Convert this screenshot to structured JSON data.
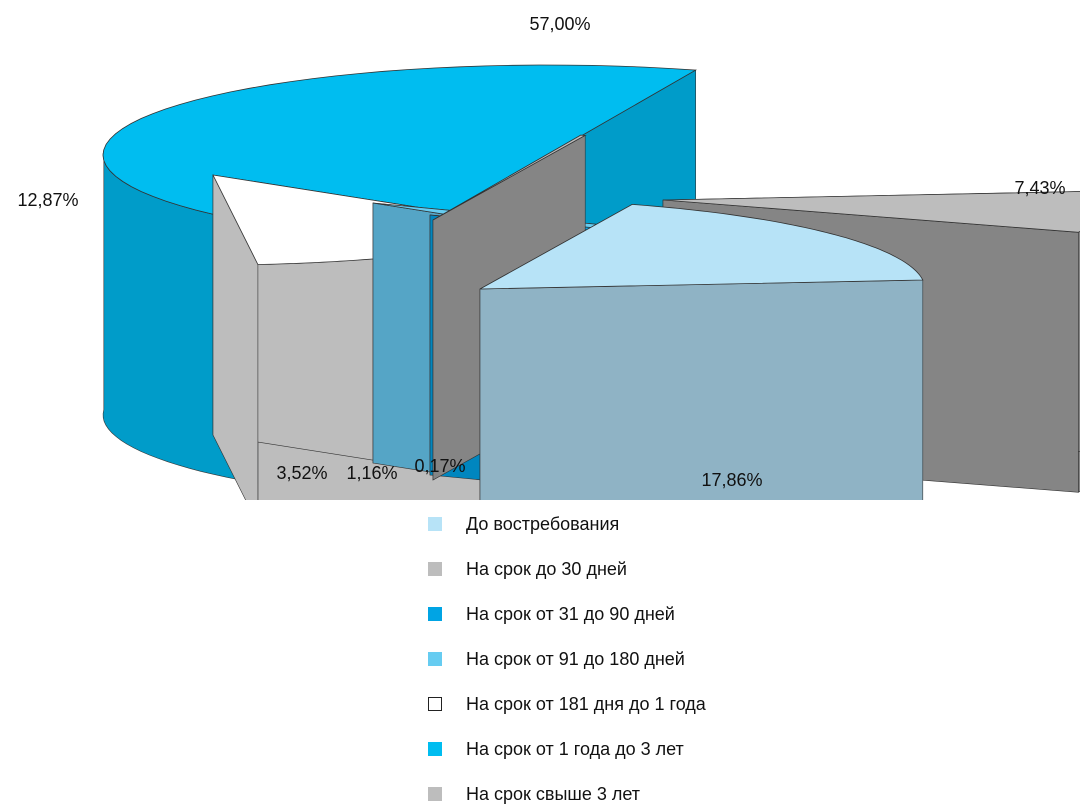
{
  "chart_data": {
    "type": "pie",
    "slices": [
      {
        "label": "До востребования",
        "value": 17.86,
        "value_label": "17,86%",
        "color": "#b7e3f7",
        "side_color": "#8fb3c5"
      },
      {
        "label": "На срок до 30 дней",
        "value": 7.43,
        "value_label": "7,43%",
        "color": "#bdbdbd",
        "side_color": "#858585"
      },
      {
        "label": "На срок от 31 до 90 дней",
        "value": 1.16,
        "value_label": "1,16%",
        "color": "#00a4e4",
        "side_color": "#0086bf"
      },
      {
        "label": "На срок от 91  до 180 дней",
        "value": 3.52,
        "value_label": "3,52%",
        "color": "#66ccf1",
        "side_color": "#55a5c6"
      },
      {
        "label": "На срок от 181 дня до 1 года",
        "value": 12.87,
        "value_label": "12,87%",
        "color": "#ffffff",
        "side_color": "#bdbdbd"
      },
      {
        "label": "На срок от 1 года до 3 лет",
        "value": 57.0,
        "value_label": "57,00%",
        "color": "#00bdf0",
        "side_color": "#009cc9"
      },
      {
        "label": "На срок свыше 3 лет",
        "value": 0.17,
        "value_label": "0,17%",
        "color": "#bdbdbd",
        "side_color": "#858585"
      }
    ],
    "legend_position": "bottom",
    "exploded": true,
    "three_d": true
  }
}
